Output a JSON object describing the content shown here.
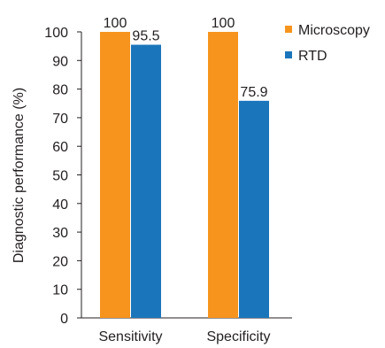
{
  "chart_data": {
    "type": "bar",
    "title": "",
    "xlabel": "",
    "ylabel": "Diagnostic performance (%)",
    "ylim": [
      0,
      100
    ],
    "yticks": [
      0,
      10,
      20,
      30,
      40,
      50,
      60,
      70,
      80,
      90,
      100
    ],
    "categories": [
      "Sensitivity",
      "Specificity"
    ],
    "series": [
      {
        "name": "Microscopy",
        "values": [
          100,
          100
        ],
        "labels": [
          "100",
          "100"
        ],
        "color": "#F7941D"
      },
      {
        "name": "RTD",
        "values": [
          95.5,
          75.9
        ],
        "labels": [
          "95.5",
          "75.9"
        ],
        "color": "#1B75BB"
      }
    ],
    "grid": false,
    "legend_position": "top-right"
  }
}
